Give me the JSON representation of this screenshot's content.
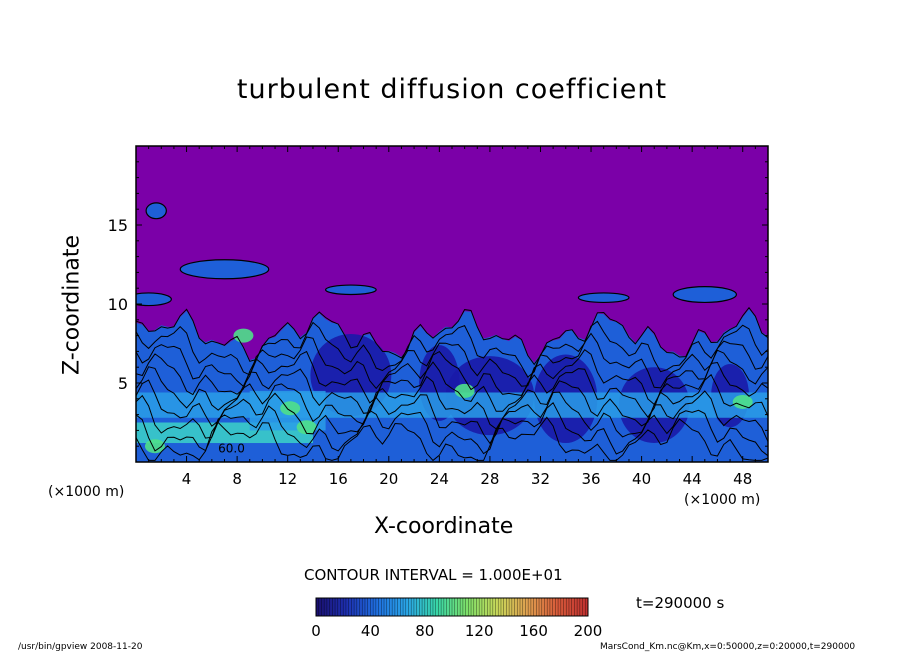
{
  "chart_data": {
    "type": "heatmap",
    "title": "turbulent diffusion coefficient",
    "xlabel": "X-coordinate",
    "ylabel": "Z-coordinate",
    "x_unit_label": "(×1000 m)",
    "x_unit_label_left": "(×1000 m)",
    "xlim": [
      0,
      50
    ],
    "ylim": [
      0,
      20
    ],
    "x_ticks": [
      4,
      8,
      12,
      16,
      20,
      24,
      28,
      32,
      36,
      40,
      44,
      48
    ],
    "y_ticks": [
      5,
      10,
      15
    ],
    "contour_interval_text": "CONTOUR INTERVAL = 1.000E+01",
    "contour_label": "60.0",
    "colorbar": {
      "min": 0,
      "max": 200,
      "ticks": [
        0,
        40,
        80,
        120,
        160,
        200
      ],
      "colors": [
        "#1a0f6e",
        "#1d2fb0",
        "#1f6fe0",
        "#2aa6e8",
        "#39d6a8",
        "#7ee06a",
        "#c8d85a",
        "#e0a050",
        "#d85a3a",
        "#c03030"
      ]
    },
    "time_label": "t=290000  s",
    "fill_colors": {
      "background": "#7b00a8",
      "low_blue": "#1a1aa8",
      "mid_blue": "#1e5fd8",
      "light_blue": "#2a9ee8",
      "cyan": "#3cd2c8",
      "green": "#4fe08a"
    }
  },
  "footer": {
    "left": "/usr/bin/gpview   2008-11-20",
    "right": "MarsCond_Km.nc@Km,x=0:50000,z=0:20000,t=290000"
  }
}
